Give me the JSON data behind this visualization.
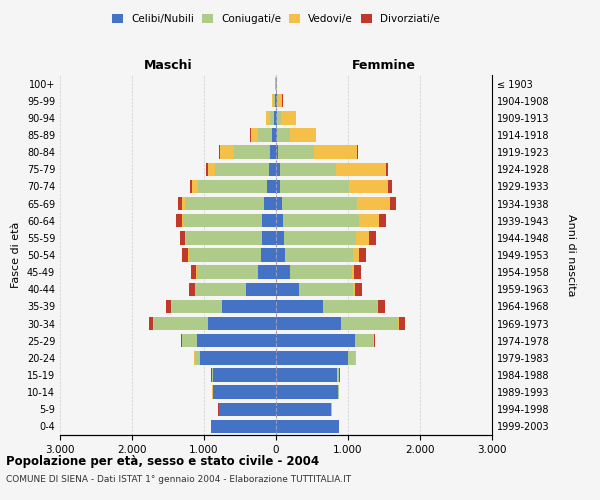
{
  "age_groups": [
    "0-4",
    "5-9",
    "10-14",
    "15-19",
    "20-24",
    "25-29",
    "30-34",
    "35-39",
    "40-44",
    "45-49",
    "50-54",
    "55-59",
    "60-64",
    "65-69",
    "70-74",
    "75-79",
    "80-84",
    "85-89",
    "90-94",
    "95-99",
    "100+"
  ],
  "birth_years": [
    "1999-2003",
    "1994-1998",
    "1989-1993",
    "1984-1988",
    "1979-1983",
    "1974-1978",
    "1969-1973",
    "1964-1968",
    "1959-1963",
    "1954-1958",
    "1949-1953",
    "1944-1948",
    "1939-1943",
    "1934-1938",
    "1929-1933",
    "1924-1928",
    "1919-1923",
    "1914-1918",
    "1909-1913",
    "1904-1908",
    "≤ 1903"
  ],
  "maschi_celibe": [
    900,
    790,
    870,
    870,
    1050,
    1100,
    950,
    750,
    420,
    250,
    210,
    200,
    190,
    160,
    130,
    100,
    80,
    50,
    30,
    15,
    5
  ],
  "maschi_coniugato": [
    5,
    5,
    10,
    20,
    80,
    200,
    750,
    700,
    700,
    850,
    1000,
    1050,
    1100,
    1100,
    950,
    750,
    500,
    200,
    60,
    20,
    5
  ],
  "maschi_vedovo": [
    2,
    2,
    2,
    5,
    5,
    5,
    5,
    5,
    5,
    5,
    10,
    10,
    20,
    40,
    80,
    100,
    200,
    100,
    50,
    15,
    2
  ],
  "maschi_divorziato": [
    2,
    2,
    2,
    5,
    10,
    20,
    60,
    70,
    80,
    80,
    80,
    80,
    80,
    60,
    30,
    20,
    5,
    5,
    5,
    2,
    0
  ],
  "femmine_celibe": [
    870,
    770,
    860,
    850,
    1000,
    1100,
    900,
    650,
    320,
    200,
    120,
    110,
    100,
    80,
    60,
    50,
    30,
    20,
    15,
    10,
    5
  ],
  "femmine_coniugato": [
    5,
    5,
    15,
    25,
    100,
    250,
    800,
    750,
    750,
    850,
    950,
    1000,
    1050,
    1050,
    950,
    780,
    500,
    180,
    60,
    20,
    5
  ],
  "femmine_vedovo": [
    2,
    2,
    2,
    2,
    5,
    5,
    10,
    20,
    30,
    40,
    80,
    180,
    280,
    450,
    550,
    700,
    600,
    350,
    200,
    60,
    10
  ],
  "femmine_divorziato": [
    2,
    2,
    2,
    5,
    10,
    20,
    80,
    100,
    90,
    90,
    100,
    100,
    100,
    80,
    50,
    30,
    10,
    5,
    5,
    2,
    0
  ],
  "colors": {
    "celibe": "#4472C4",
    "coniugato": "#AECB8A",
    "vedovo": "#F5C04A",
    "divorziato": "#C0392B"
  },
  "title": "Popolazione per età, sesso e stato civile - 2004",
  "subtitle": "COMUNE DI SIENA - Dati ISTAT 1° gennaio 2004 - Elaborazione TUTTITALIA.IT",
  "ylabel_left": "Fasce di età",
  "ylabel_right": "Anni di nascita",
  "xlabel_left": "Maschi",
  "xlabel_right": "Femmine",
  "xlim": 3000,
  "background_color": "#f5f5f5",
  "grid_color": "#cccccc",
  "legend_labels": [
    "Celibi/Nubili",
    "Coniugati/e",
    "Vedovi/e",
    "Divorziati/e"
  ]
}
